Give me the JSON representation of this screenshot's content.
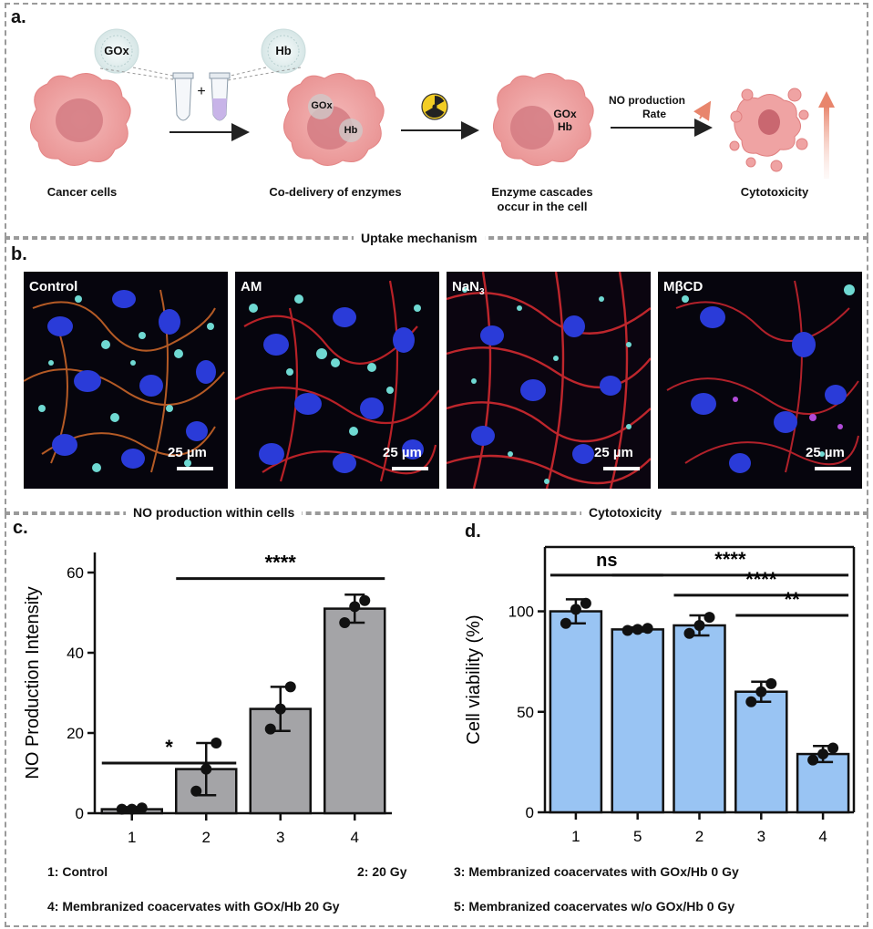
{
  "panel_a": {
    "letter": "a.",
    "gox_label": "GOx",
    "hb_label": "Hb",
    "plus": "+",
    "cell1_label": "Cancer cells",
    "cell2_label": "Co-delivery of enzymes",
    "cell2_gox": "GOx",
    "cell2_hb": "Hb",
    "cell3_label_line1": "Enzyme cascades",
    "cell3_label_line2": "occur in the cell",
    "cell3_gox": "GOx",
    "cell3_hb": "Hb",
    "no_rate_line1": "NO production",
    "no_rate_line2": "Rate",
    "cell4_label": "Cytotoxicity"
  },
  "section_uptake": "Uptake mechanism",
  "panel_b": {
    "letter": "b.",
    "images": [
      {
        "label": "Control",
        "scale": "25 µm"
      },
      {
        "label": "AM",
        "scale": "25 µm"
      },
      {
        "label": "NaN",
        "label_sub": "3",
        "scale": "25 µm"
      },
      {
        "label": "MβCD",
        "scale": "25 µm"
      }
    ]
  },
  "section_no": "NO production within cells",
  "section_cyto": "Cytotoxicity",
  "panel_c": {
    "letter": "c."
  },
  "panel_d": {
    "letter": "d."
  },
  "legend": {
    "l1": "1: Control",
    "l2": "2: 20 Gy",
    "l3": "3: Membranized coacervates with GOx/Hb 0 Gy",
    "l4": "4: Membranized coacervates with GOx/Hb 20 Gy",
    "l5": "5: Membranized coacervates w/o GOx/Hb 0 Gy"
  },
  "chart_data": [
    {
      "type": "bar",
      "panel": "c",
      "ylabel": "NO Production Intensity",
      "categories": [
        "1",
        "2",
        "3",
        "4"
      ],
      "values": [
        1,
        11,
        26,
        51
      ],
      "errors": [
        0.5,
        6.5,
        5.5,
        3.5
      ],
      "points": [
        [
          1,
          1,
          1.3
        ],
        [
          5.5,
          11,
          17.5
        ],
        [
          21,
          26,
          31.5
        ],
        [
          47.5,
          51.5,
          53
        ]
      ],
      "ylim": [
        0,
        65
      ],
      "yticks": [
        0,
        20,
        40,
        60
      ],
      "bar_color": "#a4a4a7",
      "significance": [
        {
          "from": "1",
          "to": "2",
          "label": "*"
        },
        {
          "from": "2",
          "to": "4",
          "label": "****"
        }
      ]
    },
    {
      "type": "bar",
      "panel": "d",
      "ylabel": "Cell viability (%)",
      "categories": [
        "1",
        "5",
        "2",
        "3",
        "4"
      ],
      "values": [
        100,
        91,
        93,
        60,
        29
      ],
      "errors": [
        6,
        1,
        5,
        5,
        4
      ],
      "points": [
        [
          94,
          101,
          104
        ],
        [
          90.5,
          91,
          91.5
        ],
        [
          89,
          93,
          97
        ],
        [
          55,
          60,
          64
        ],
        [
          26,
          29,
          32
        ]
      ],
      "ylim": [
        0,
        132
      ],
      "yticks": [
        0,
        50,
        100
      ],
      "bar_color": "#99c4f3",
      "significance": [
        {
          "from": "1",
          "to": "5",
          "label": "ns"
        },
        {
          "from": "5",
          "to": "4",
          "label": "****"
        },
        {
          "from": "2",
          "to": "4",
          "label": "****"
        },
        {
          "from": "3",
          "to": "4",
          "label": "**"
        }
      ]
    }
  ]
}
